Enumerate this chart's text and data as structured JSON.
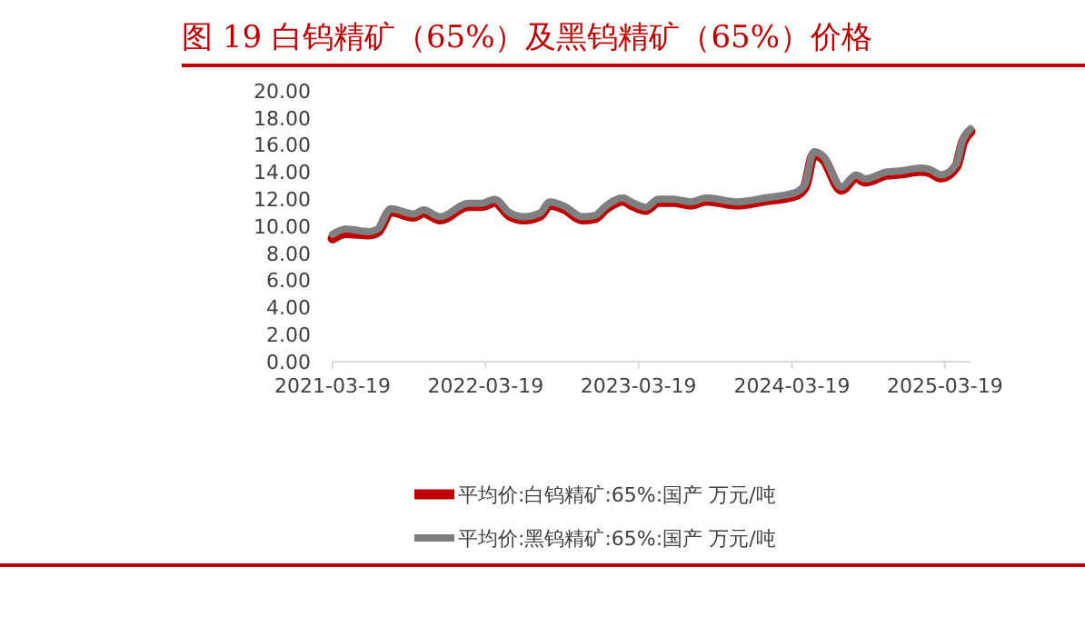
{
  "chart_data": {
    "type": "line",
    "title": "图 19 白钨精矿（65%）及黑钨精矿（65%）价格",
    "xlim": [
      "2021-03-19",
      "2025-05-19"
    ],
    "xticks": [
      "2021-03-19",
      "2022-03-19",
      "2023-03-19",
      "2024-03-19",
      "2025-03-19"
    ],
    "ylim": [
      0,
      20
    ],
    "yticks": [
      {
        "value": 0,
        "label": "0.00"
      },
      {
        "value": 2,
        "label": "2.00"
      },
      {
        "value": 4,
        "label": "4.00"
      },
      {
        "value": 6,
        "label": "6.00"
      },
      {
        "value": 8,
        "label": "8.00"
      },
      {
        "value": 10,
        "label": "10.00"
      },
      {
        "value": 12,
        "label": "12.00"
      },
      {
        "value": 14,
        "label": "14.00"
      },
      {
        "value": 16,
        "label": "16.00"
      },
      {
        "value": 18,
        "label": "18.00"
      },
      {
        "value": 20,
        "label": "20.00"
      }
    ],
    "x": [
      "2021-03-19",
      "2021-04-19",
      "2021-06-15",
      "2021-07-05",
      "2021-08-05",
      "2021-09-28",
      "2021-10-22",
      "2021-12-01",
      "2022-02-05",
      "2022-03-10",
      "2022-04-10",
      "2022-05-15",
      "2022-06-19",
      "2022-07-28",
      "2022-08-19",
      "2022-09-22",
      "2022-11-05",
      "2022-12-05",
      "2022-12-31",
      "2023-02-10",
      "2023-03-01",
      "2023-04-05",
      "2023-05-05",
      "2023-06-10",
      "2023-07-22",
      "2023-08-28",
      "2023-11-08",
      "2024-01-15",
      "2024-03-28",
      "2024-04-19",
      "2024-05-10",
      "2024-06-01",
      "2024-07-15",
      "2024-08-19",
      "2024-09-10",
      "2024-10-30",
      "2024-12-05",
      "2025-01-19",
      "2025-02-10",
      "2025-03-10",
      "2025-04-15",
      "2025-05-01",
      "2025-05-19"
    ],
    "series": [
      {
        "name": "平均价:白钨精矿:65%:国产 万元/吨",
        "color": "#c00000",
        "values": [
          9.1,
          9.5,
          9.4,
          9.6,
          11.1,
          10.7,
          11.0,
          10.5,
          11.5,
          11.5,
          11.8,
          10.8,
          10.5,
          10.8,
          11.6,
          11.3,
          10.5,
          10.6,
          11.3,
          11.9,
          11.6,
          11.2,
          11.8,
          11.8,
          11.6,
          11.9,
          11.6,
          11.9,
          12.3,
          12.9,
          15.3,
          15.0,
          12.7,
          13.6,
          13.3,
          13.8,
          13.9,
          14.1,
          14.0,
          13.6,
          14.4,
          16.2,
          17.0
        ]
      },
      {
        "name": "平均价:黑钨精矿:65%:国产 万元/吨",
        "color": "#7f7f7f",
        "values": [
          9.4,
          9.8,
          9.6,
          9.8,
          11.3,
          10.9,
          11.2,
          10.7,
          11.7,
          11.7,
          12.0,
          11.0,
          10.7,
          11.0,
          11.8,
          11.5,
          10.7,
          10.8,
          11.5,
          12.1,
          11.8,
          11.4,
          12.0,
          12.0,
          11.8,
          12.1,
          11.8,
          12.1,
          12.5,
          13.1,
          15.5,
          15.2,
          12.9,
          13.8,
          13.5,
          14.0,
          14.1,
          14.3,
          14.2,
          13.8,
          14.6,
          16.4,
          17.2
        ]
      }
    ],
    "legend": "bottom",
    "grid": false,
    "marker": "none",
    "line_style": "solid"
  }
}
